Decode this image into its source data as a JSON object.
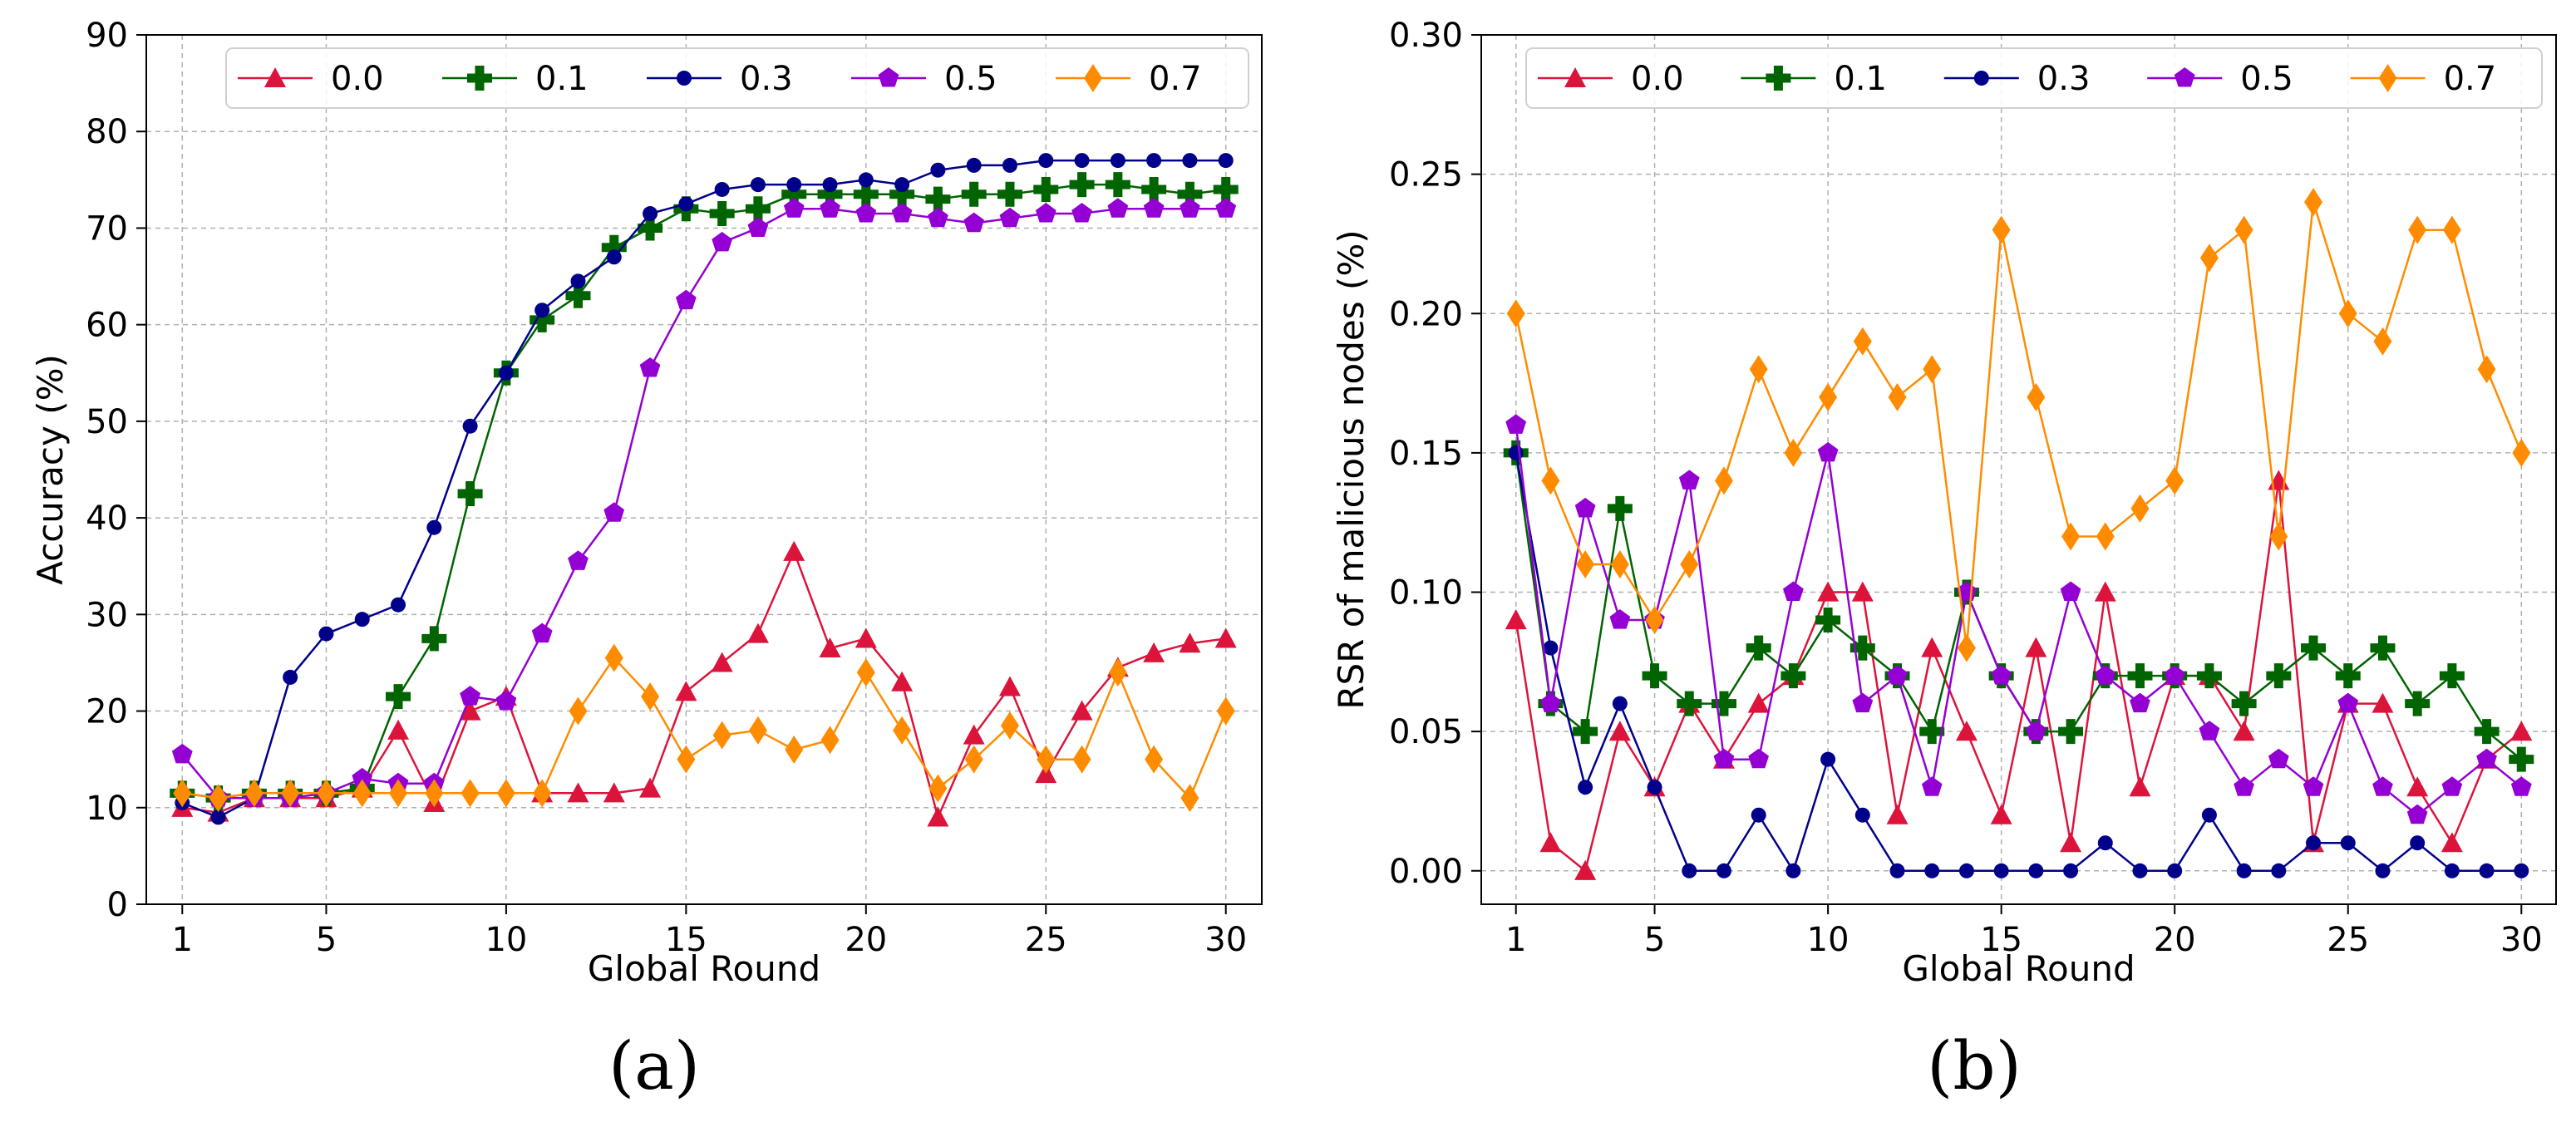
{
  "chart_data": [
    {
      "type": "line",
      "panel_label": "(a)",
      "xlabel": "Global Round",
      "ylabel": "Accuracy (%)",
      "xlim": [
        0,
        31
      ],
      "ylim": [
        0,
        90
      ],
      "xticks": [
        1,
        5,
        10,
        15,
        20,
        25,
        30
      ],
      "yticks": [
        0,
        10,
        20,
        30,
        40,
        50,
        60,
        70,
        80,
        90
      ],
      "ytick_labels": [
        "0",
        "10",
        "20",
        "30",
        "40",
        "50",
        "60",
        "70",
        "80",
        "90"
      ],
      "grid": true,
      "legend_position": "top",
      "x": [
        1,
        2,
        3,
        4,
        5,
        6,
        7,
        8,
        9,
        10,
        11,
        12,
        13,
        14,
        15,
        16,
        17,
        18,
        19,
        20,
        21,
        22,
        23,
        24,
        25,
        26,
        27,
        28,
        29,
        30
      ],
      "series": [
        {
          "name": "0.0",
          "color": "#dc143c",
          "marker": "triangle",
          "values": [
            10.0,
            9.5,
            11.0,
            11.0,
            11.0,
            12.0,
            18.0,
            10.5,
            20.0,
            21.5,
            11.5,
            11.5,
            11.5,
            12.0,
            22.0,
            25.0,
            28.0,
            36.5,
            26.5,
            27.5,
            23.0,
            9.0,
            17.5,
            22.5,
            13.5,
            20.0,
            24.5,
            26.0,
            27.0,
            27.5
          ]
        },
        {
          "name": "0.1",
          "color": "#006400",
          "marker": "plus",
          "values": [
            11.5,
            11.0,
            11.5,
            11.5,
            11.5,
            12.0,
            21.5,
            27.5,
            42.5,
            55.0,
            60.5,
            63.0,
            68.0,
            70.0,
            72.0,
            71.5,
            72.0,
            73.5,
            73.5,
            73.5,
            73.5,
            73.0,
            73.5,
            73.5,
            74.0,
            74.5,
            74.5,
            74.0,
            73.5,
            74.0
          ]
        },
        {
          "name": "0.3",
          "color": "#00008b",
          "marker": "circle",
          "values": [
            10.5,
            9.0,
            11.0,
            23.5,
            28.0,
            29.5,
            31.0,
            39.0,
            49.5,
            55.0,
            61.5,
            64.5,
            67.0,
            71.5,
            72.5,
            74.0,
            74.5,
            74.5,
            74.5,
            75.0,
            74.5,
            76.0,
            76.5,
            76.5,
            77.0,
            77.0,
            77.0,
            77.0,
            77.0,
            77.0
          ]
        },
        {
          "name": "0.5",
          "color": "#9400d3",
          "marker": "pentagon",
          "values": [
            15.5,
            11.0,
            11.0,
            11.0,
            11.5,
            13.0,
            12.5,
            12.5,
            21.5,
            21.0,
            28.0,
            35.5,
            40.5,
            55.5,
            62.5,
            68.5,
            70.0,
            72.0,
            72.0,
            71.5,
            71.5,
            71.0,
            70.5,
            71.0,
            71.5,
            71.5,
            72.0,
            72.0,
            72.0,
            72.0
          ]
        },
        {
          "name": "0.7",
          "color": "#ff8c00",
          "marker": "diamond",
          "values": [
            11.5,
            11.0,
            11.5,
            11.5,
            11.5,
            11.5,
            11.5,
            11.5,
            11.5,
            11.5,
            11.5,
            20.0,
            25.5,
            21.5,
            15.0,
            17.5,
            18.0,
            16.0,
            17.0,
            24.0,
            18.0,
            12.0,
            15.0,
            18.5,
            15.0,
            15.0,
            24.0,
            15.0,
            11.0,
            20.0
          ]
        }
      ]
    },
    {
      "type": "line",
      "panel_label": "(b)",
      "xlabel": "Global Round",
      "ylabel": "RSR of malicious nodes (%)",
      "xlim": [
        0,
        31
      ],
      "ylim": [
        -0.012,
        0.3
      ],
      "xticks": [
        1,
        5,
        10,
        15,
        20,
        25,
        30
      ],
      "yticks": [
        0.0,
        0.05,
        0.1,
        0.15,
        0.2,
        0.25,
        0.3
      ],
      "ytick_labels": [
        "0.00",
        "0.05",
        "0.10",
        "0.15",
        "0.20",
        "0.25",
        "0.30"
      ],
      "grid": true,
      "legend_position": "top",
      "x": [
        1,
        2,
        3,
        4,
        5,
        6,
        7,
        8,
        9,
        10,
        11,
        12,
        13,
        14,
        15,
        16,
        17,
        18,
        19,
        20,
        21,
        22,
        23,
        24,
        25,
        26,
        27,
        28,
        29,
        30
      ],
      "series": [
        {
          "name": "0.0",
          "color": "#dc143c",
          "marker": "triangle",
          "values": [
            0.09,
            0.01,
            0.0,
            0.05,
            0.03,
            0.06,
            0.04,
            0.06,
            0.07,
            0.1,
            0.1,
            0.02,
            0.08,
            0.05,
            0.02,
            0.08,
            0.01,
            0.1,
            0.03,
            0.07,
            0.07,
            0.05,
            0.14,
            0.01,
            0.06,
            0.06,
            0.03,
            0.01,
            0.04,
            0.05
          ]
        },
        {
          "name": "0.1",
          "color": "#006400",
          "marker": "plus",
          "values": [
            0.15,
            0.06,
            0.05,
            0.13,
            0.07,
            0.06,
            0.06,
            0.08,
            0.07,
            0.09,
            0.08,
            0.07,
            0.05,
            0.1,
            0.07,
            0.05,
            0.05,
            0.07,
            0.07,
            0.07,
            0.07,
            0.06,
            0.07,
            0.08,
            0.07,
            0.08,
            0.06,
            0.07,
            0.05,
            0.04
          ]
        },
        {
          "name": "0.3",
          "color": "#00008b",
          "marker": "circle",
          "values": [
            0.15,
            0.08,
            0.03,
            0.06,
            0.03,
            0.0,
            0.0,
            0.02,
            0.0,
            0.04,
            0.02,
            0.0,
            0.0,
            0.0,
            0.0,
            0.0,
            0.0,
            0.01,
            0.0,
            0.0,
            0.02,
            0.0,
            0.0,
            0.01,
            0.01,
            0.0,
            0.01,
            0.0,
            0.0,
            0.0
          ]
        },
        {
          "name": "0.5",
          "color": "#9400d3",
          "marker": "pentagon",
          "values": [
            0.16,
            0.06,
            0.13,
            0.09,
            0.09,
            0.14,
            0.04,
            0.04,
            0.1,
            0.15,
            0.06,
            0.07,
            0.03,
            0.1,
            0.07,
            0.05,
            0.1,
            0.07,
            0.06,
            0.07,
            0.05,
            0.03,
            0.04,
            0.03,
            0.06,
            0.03,
            0.02,
            0.03,
            0.04,
            0.03
          ]
        },
        {
          "name": "0.7",
          "color": "#ff8c00",
          "marker": "diamond",
          "values": [
            0.2,
            0.14,
            0.11,
            0.11,
            0.09,
            0.11,
            0.14,
            0.18,
            0.15,
            0.17,
            0.19,
            0.17,
            0.18,
            0.08,
            0.23,
            0.17,
            0.12,
            0.12,
            0.13,
            0.14,
            0.22,
            0.23,
            0.12,
            0.24,
            0.2,
            0.19,
            0.23,
            0.23,
            0.18,
            0.15
          ]
        }
      ]
    }
  ]
}
